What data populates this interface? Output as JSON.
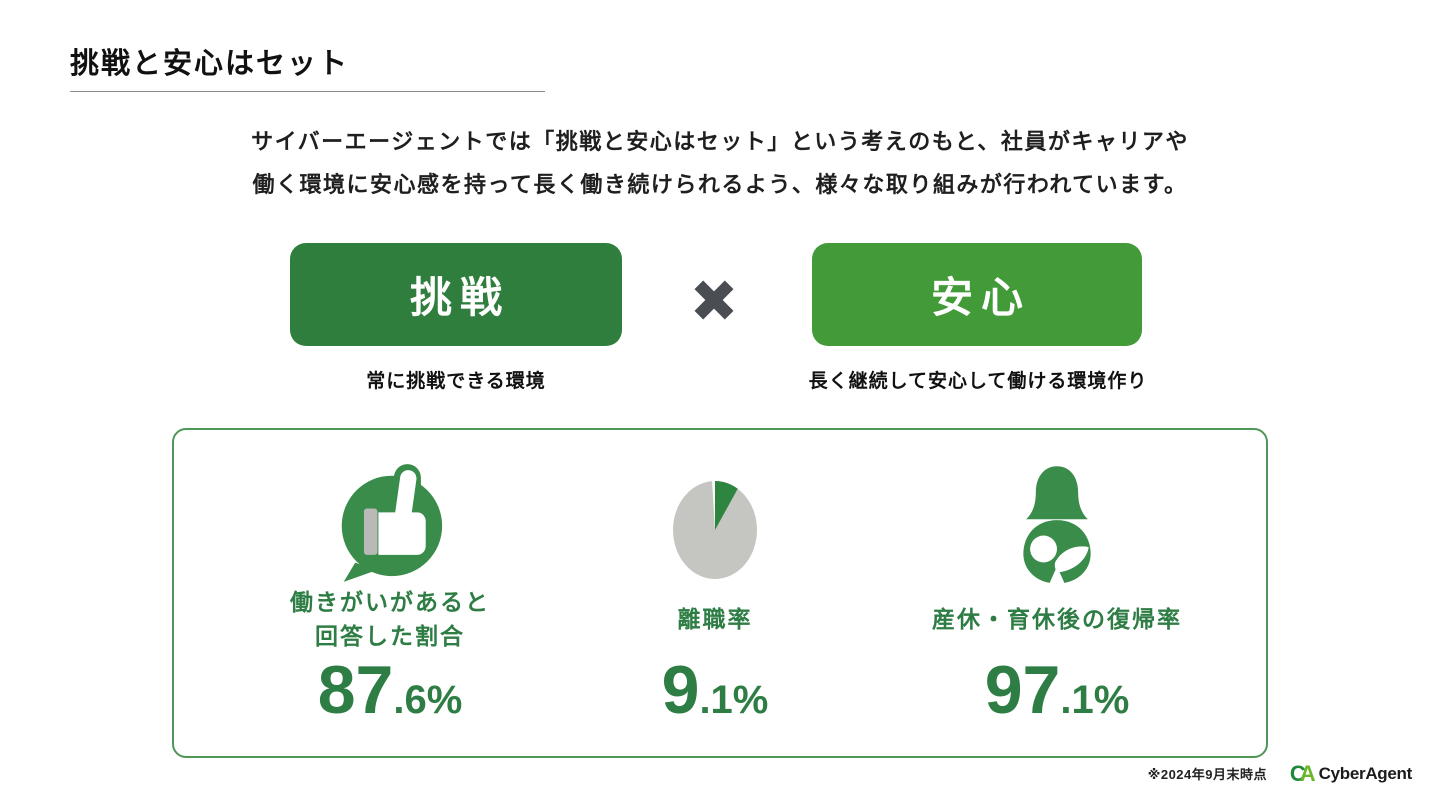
{
  "page": {
    "title": "挑戦と安心はセット"
  },
  "intro": {
    "line1": "サイバーエージェントでは「挑戦と安心はセット」という考えのもと、社員がキャリアや",
    "line2": "働く環境に安心感を持って長く働き続けられるよう、様々な取り組みが行われています。"
  },
  "concept": {
    "left": {
      "label": "挑戦",
      "caption": "常に挑戦できる環境",
      "color": "#2f7e3e"
    },
    "multiply_symbol": "×",
    "right": {
      "label": "安心",
      "caption": "長く継続して安心して働ける環境作り",
      "color": "#429a38"
    }
  },
  "stats": [
    {
      "icon": "thumbs-up-speech-bubble-icon",
      "label_lines": [
        "働きがいがあると",
        "回答した割合"
      ],
      "value_int": "87",
      "value_frac": ".6",
      "unit": "%"
    },
    {
      "icon": "pie-chart-icon",
      "label_lines": [
        "離職率"
      ],
      "value_int": "9",
      "value_frac": ".1",
      "unit": "%",
      "pie_percent": 9.1
    },
    {
      "icon": "mother-baby-icon",
      "label_lines": [
        "産休・育休後の復帰率"
      ],
      "value_int": "97",
      "value_frac": ".1",
      "unit": "%"
    }
  ],
  "footer": {
    "note": "※2024年9月末時点",
    "logo_mark_c": "C",
    "logo_mark_a": "A",
    "logo_text": "CyberAgent"
  },
  "colors": {
    "dark_green_button": "#2f7e3e",
    "light_green_button": "#429a38",
    "stat_green": "#2e7d44",
    "icon_green": "#3a8c4a",
    "pie_gray": "#c5c5c2",
    "cuff_gray": "#b9b9b7",
    "cross_gray": "#4a4e54",
    "box_border_green": "#4f9758"
  }
}
